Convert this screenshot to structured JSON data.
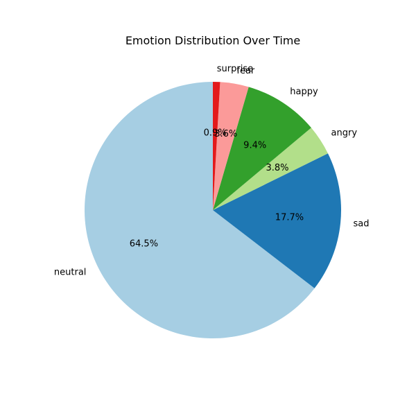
{
  "chart_data": {
    "type": "pie",
    "title": "Emotion Distribution Over Time",
    "categories": [
      "neutral",
      "sad",
      "angry",
      "happy",
      "fear",
      "surprise"
    ],
    "values": [
      64.5,
      17.7,
      3.8,
      9.4,
      3.6,
      0.9
    ],
    "percent_labels": [
      "64.5%",
      "17.7%",
      "3.8%",
      "9.4%",
      "3.6%",
      "0.9%"
    ],
    "colors": [
      "#a6cee3",
      "#1f78b4",
      "#b2df8a",
      "#33a02c",
      "#fb9a99",
      "#e31a1c"
    ],
    "start_angle_deg": 90,
    "direction": "counterclockwise"
  }
}
